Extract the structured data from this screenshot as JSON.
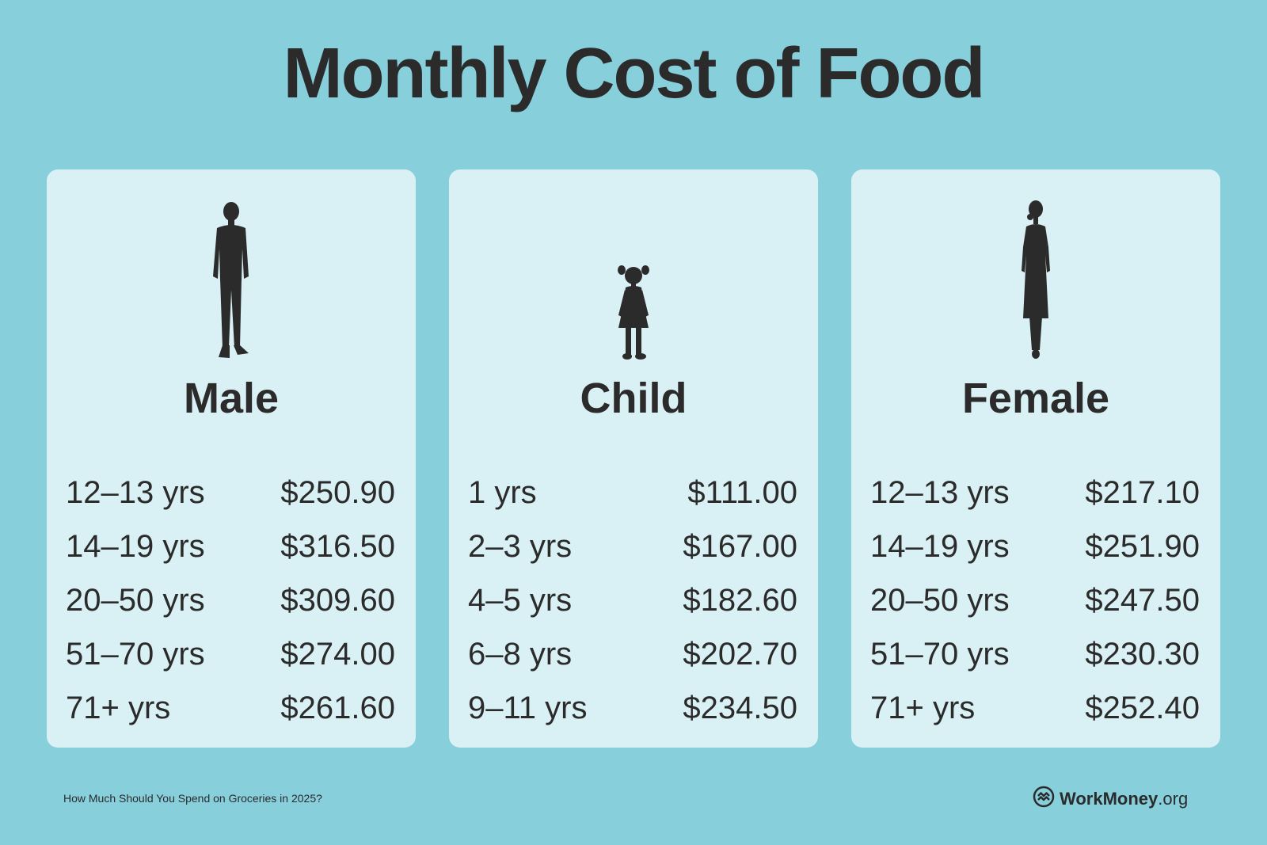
{
  "title": "Monthly Cost of Food",
  "cards": [
    {
      "label": "Male",
      "icon": "man-silhouette-icon",
      "rows": [
        {
          "age": "12–13 yrs",
          "cost": "$250.90"
        },
        {
          "age": "14–19 yrs",
          "cost": "$316.50"
        },
        {
          "age": "20–50 yrs",
          "cost": "$309.60"
        },
        {
          "age": "51–70 yrs",
          "cost": "$274.00"
        },
        {
          "age": "71+ yrs",
          "cost": "$261.60"
        }
      ]
    },
    {
      "label": "Child",
      "icon": "girl-silhouette-icon",
      "rows": [
        {
          "age": "1 yrs",
          "cost": "$111.00"
        },
        {
          "age": "2–3 yrs",
          "cost": "$167.00"
        },
        {
          "age": "4–5 yrs",
          "cost": "$182.60"
        },
        {
          "age": "6–8 yrs",
          "cost": "$202.70"
        },
        {
          "age": "9–11 yrs",
          "cost": "$234.50"
        }
      ]
    },
    {
      "label": "Female",
      "icon": "woman-silhouette-icon",
      "rows": [
        {
          "age": "12–13 yrs",
          "cost": "$217.10"
        },
        {
          "age": "14–19 yrs",
          "cost": "$251.90"
        },
        {
          "age": "20–50 yrs",
          "cost": "$247.50"
        },
        {
          "age": "51–70 yrs",
          "cost": "$230.30"
        },
        {
          "age": "71+ yrs",
          "cost": "$252.40"
        }
      ]
    }
  ],
  "footer": {
    "caption": "How Much Should You Spend on Groceries in 2025?",
    "logo_bold": "WorkMoney",
    "logo_light": ".org",
    "logo_icon": "workmoney-logo-icon"
  },
  "colors": {
    "background": "#88cfdc",
    "card": "#d9f0f4",
    "text": "#2b2b2b"
  }
}
